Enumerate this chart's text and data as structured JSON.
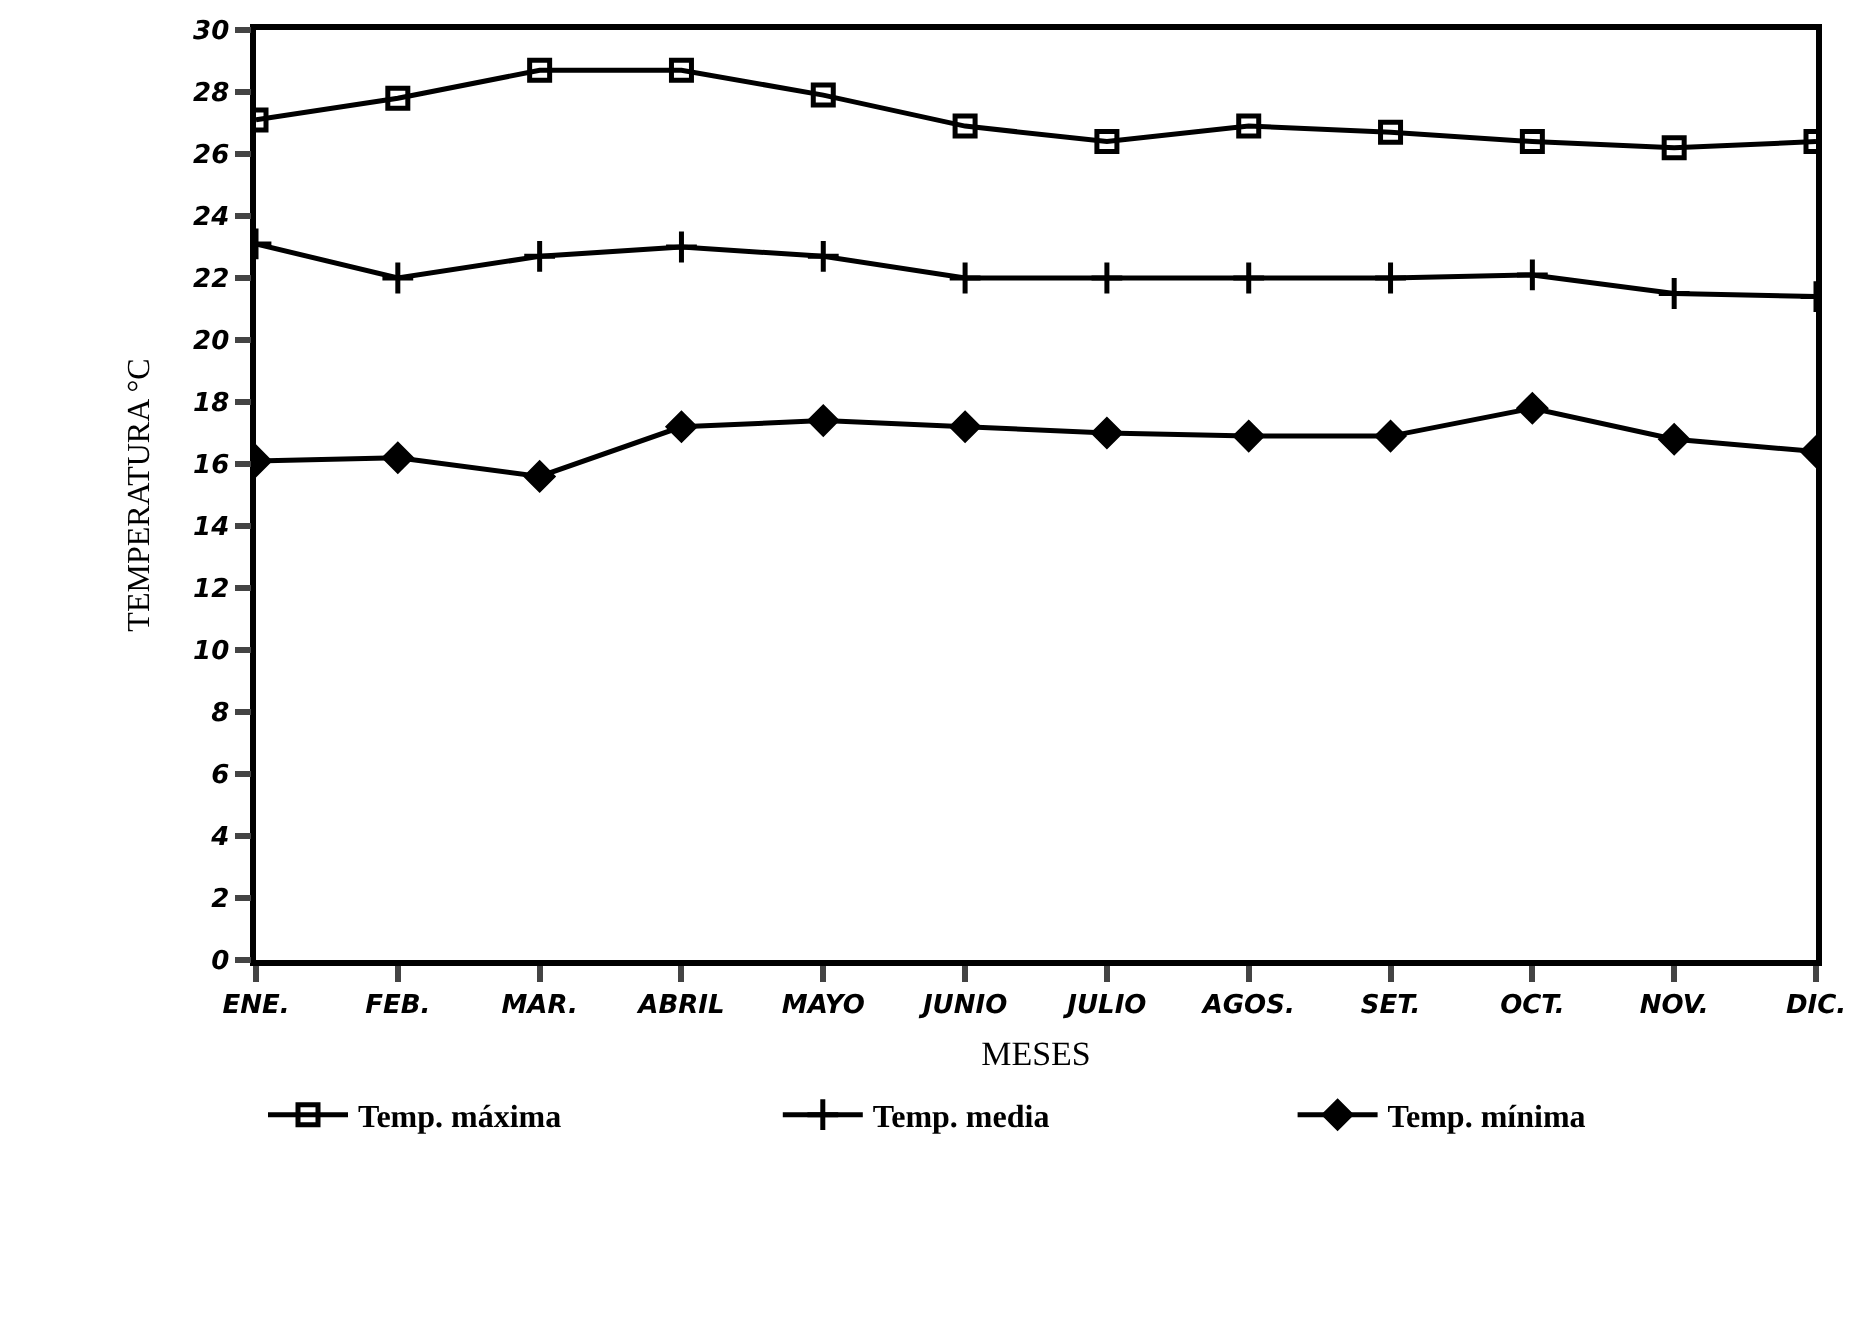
{
  "chart_data": {
    "type": "line",
    "xlabel": "MESES",
    "ylabel": "TEMPERATURA °C",
    "categories": [
      "ENE.",
      "FEB.",
      "MAR.",
      "ABRIL",
      "MAYO",
      "JUNIO",
      "JULIO",
      "AGOS.",
      "SET.",
      "OCT.",
      "NOV.",
      "DIC."
    ],
    "series": [
      {
        "name": "Temp. máxima",
        "color": "#000000",
        "marker": "square",
        "values": [
          27.1,
          27.8,
          28.7,
          28.7,
          27.9,
          26.9,
          26.4,
          26.9,
          26.7,
          26.4,
          26.2,
          26.4
        ]
      },
      {
        "name": "Temp. media",
        "color": "#000000",
        "marker": "cross",
        "values": [
          23.1,
          22.0,
          22.7,
          23.0,
          22.7,
          22.0,
          22.0,
          22.0,
          22.0,
          22.1,
          21.5,
          21.4
        ]
      },
      {
        "name": "Temp. mínima",
        "color": "#000000",
        "marker": "diamond",
        "values": [
          16.1,
          16.2,
          15.6,
          17.2,
          17.4,
          17.2,
          17.0,
          16.9,
          16.9,
          17.8,
          16.8,
          16.4
        ]
      }
    ],
    "ylim": [
      0,
      30
    ],
    "yticks": [
      0,
      2,
      4,
      6,
      8,
      10,
      12,
      14,
      16,
      18,
      20,
      22,
      24,
      26,
      28,
      30
    ],
    "grid": false,
    "legend": "bottom",
    "line_style": "solid"
  }
}
